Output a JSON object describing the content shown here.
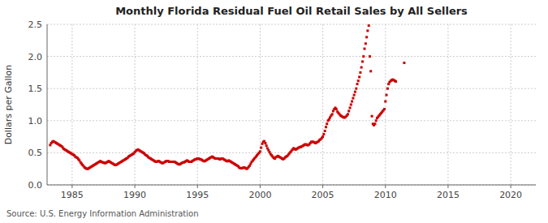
{
  "chart_data": {
    "type": "scatter",
    "title": "Monthly Florida Residual Fuel Oil Retail Sales by All Sellers",
    "y_label": "Dollars per Gallon",
    "annotations": [
      "Source: U.S. Energy Information Administration"
    ],
    "color": "#CC0000",
    "marker": "square",
    "grid": true,
    "xlim": [
      1983.0,
      2022.0
    ],
    "ylim": [
      0.0,
      2.5
    ],
    "xticks": [
      1985,
      1990,
      1995,
      2000,
      2005,
      2010,
      2015,
      2020
    ],
    "yticks": [
      {
        "value": 0.0,
        "label": "0.0"
      },
      0.5,
      {
        "value": 1.0,
        "label": "1.0"
      },
      1.5,
      {
        "value": 2.0,
        "label": "2.0"
      },
      2.5
    ],
    "x": [
      1983.25,
      1983.33,
      1983.42,
      1983.5,
      1983.58,
      1983.67,
      1983.75,
      1983.83,
      1983.92,
      1984.0,
      1984.08,
      1984.17,
      1984.25,
      1984.33,
      1984.42,
      1984.5,
      1984.58,
      1984.67,
      1984.75,
      1984.83,
      1984.92,
      1985.0,
      1985.08,
      1985.17,
      1985.25,
      1985.33,
      1985.42,
      1985.5,
      1985.58,
      1985.67,
      1985.75,
      1985.83,
      1985.92,
      1986.0,
      1986.08,
      1986.17,
      1986.25,
      1986.33,
      1986.42,
      1986.5,
      1986.58,
      1986.67,
      1986.75,
      1986.83,
      1986.92,
      1987.0,
      1987.08,
      1987.17,
      1987.25,
      1987.33,
      1987.42,
      1987.5,
      1987.58,
      1987.67,
      1987.75,
      1987.83,
      1987.92,
      1988.0,
      1988.08,
      1988.17,
      1988.25,
      1988.33,
      1988.42,
      1988.5,
      1988.58,
      1988.67,
      1988.75,
      1988.83,
      1988.92,
      1989.0,
      1989.08,
      1989.17,
      1989.25,
      1989.33,
      1989.42,
      1989.5,
      1989.58,
      1989.67,
      1989.75,
      1989.83,
      1989.92,
      1990.0,
      1990.08,
      1990.17,
      1990.25,
      1990.33,
      1990.42,
      1990.5,
      1990.58,
      1990.67,
      1990.75,
      1990.83,
      1990.92,
      1991.0,
      1991.08,
      1991.17,
      1991.25,
      1991.33,
      1991.42,
      1991.5,
      1991.58,
      1991.67,
      1991.75,
      1991.83,
      1991.92,
      1992.0,
      1992.08,
      1992.17,
      1992.25,
      1992.33,
      1992.42,
      1992.5,
      1992.58,
      1992.67,
      1992.75,
      1992.83,
      1992.92,
      1993.0,
      1993.08,
      1993.17,
      1993.25,
      1993.33,
      1993.42,
      1993.5,
      1993.58,
      1993.67,
      1993.75,
      1993.83,
      1993.92,
      1994.0,
      1994.08,
      1994.17,
      1994.25,
      1994.33,
      1994.42,
      1994.5,
      1994.58,
      1994.67,
      1994.75,
      1994.83,
      1994.92,
      1995.0,
      1995.08,
      1995.17,
      1995.25,
      1995.33,
      1995.42,
      1995.5,
      1995.58,
      1995.67,
      1995.75,
      1995.83,
      1995.92,
      1996.0,
      1996.08,
      1996.17,
      1996.25,
      1996.33,
      1996.42,
      1996.5,
      1996.58,
      1996.67,
      1996.75,
      1996.83,
      1996.92,
      1997.0,
      1997.08,
      1997.17,
      1997.25,
      1997.33,
      1997.42,
      1997.5,
      1997.58,
      1997.67,
      1997.75,
      1997.83,
      1997.92,
      1998.0,
      1998.08,
      1998.17,
      1998.25,
      1998.33,
      1998.42,
      1998.5,
      1998.58,
      1998.67,
      1998.75,
      1998.83,
      1998.92,
      1999.0,
      1999.08,
      1999.17,
      1999.25,
      1999.33,
      1999.42,
      1999.5,
      1999.58,
      1999.67,
      1999.75,
      1999.83,
      1999.92,
      2000.0,
      2000.08,
      2000.17,
      2000.25,
      2000.33,
      2000.42,
      2000.5,
      2000.58,
      2000.67,
      2000.75,
      2000.83,
      2000.92,
      2001.0,
      2001.08,
      2001.17,
      2001.25,
      2001.33,
      2001.42,
      2001.5,
      2001.58,
      2001.67,
      2001.75,
      2001.83,
      2001.92,
      2002.0,
      2002.08,
      2002.17,
      2002.25,
      2002.33,
      2002.42,
      2002.5,
      2002.58,
      2002.67,
      2002.75,
      2002.83,
      2002.92,
      2003.0,
      2003.08,
      2003.17,
      2003.25,
      2003.33,
      2003.42,
      2003.5,
      2003.58,
      2003.67,
      2003.75,
      2003.83,
      2003.92,
      2004.0,
      2004.08,
      2004.17,
      2004.25,
      2004.33,
      2004.42,
      2004.5,
      2004.58,
      2004.67,
      2004.75,
      2004.83,
      2004.92,
      2005.0,
      2005.08,
      2005.17,
      2005.25,
      2005.33,
      2005.42,
      2005.5,
      2005.58,
      2005.67,
      2005.75,
      2005.83,
      2005.92,
      2006.0,
      2006.08,
      2006.17,
      2006.25,
      2006.33,
      2006.42,
      2006.5,
      2006.58,
      2006.67,
      2006.75,
      2006.83,
      2006.92,
      2007.0,
      2007.08,
      2007.17,
      2007.25,
      2007.33,
      2007.42,
      2007.5,
      2007.58,
      2007.67,
      2007.75,
      2007.83,
      2007.92,
      2008.0,
      2008.08,
      2008.17,
      2008.25,
      2008.33,
      2008.42,
      2008.5,
      2008.58,
      2008.67,
      2008.75,
      2008.83,
      2008.92,
      2009.0,
      2009.08,
      2009.17,
      2009.25,
      2009.33,
      2009.42,
      2009.5,
      2009.58,
      2009.67,
      2009.75,
      2009.83,
      2009.92,
      2010.0,
      2010.08,
      2010.17,
      2010.25,
      2010.33,
      2010.42,
      2010.5,
      2010.58,
      2010.67,
      2010.75,
      2010.83,
      2011.5
    ],
    "values": [
      0.62,
      0.65,
      0.67,
      0.68,
      0.67,
      0.66,
      0.65,
      0.64,
      0.63,
      0.62,
      0.61,
      0.6,
      0.58,
      0.56,
      0.55,
      0.54,
      0.53,
      0.52,
      0.51,
      0.5,
      0.49,
      0.48,
      0.47,
      0.46,
      0.44,
      0.43,
      0.42,
      0.4,
      0.38,
      0.35,
      0.33,
      0.31,
      0.29,
      0.27,
      0.26,
      0.25,
      0.25,
      0.26,
      0.27,
      0.28,
      0.29,
      0.3,
      0.31,
      0.32,
      0.33,
      0.34,
      0.35,
      0.36,
      0.37,
      0.36,
      0.35,
      0.35,
      0.34,
      0.34,
      0.35,
      0.36,
      0.37,
      0.36,
      0.35,
      0.34,
      0.33,
      0.32,
      0.31,
      0.31,
      0.32,
      0.33,
      0.34,
      0.35,
      0.36,
      0.37,
      0.38,
      0.39,
      0.4,
      0.41,
      0.42,
      0.44,
      0.45,
      0.46,
      0.47,
      0.48,
      0.49,
      0.51,
      0.53,
      0.54,
      0.55,
      0.54,
      0.53,
      0.52,
      0.51,
      0.5,
      0.49,
      0.47,
      0.46,
      0.45,
      0.43,
      0.42,
      0.41,
      0.4,
      0.39,
      0.38,
      0.37,
      0.36,
      0.36,
      0.37,
      0.37,
      0.36,
      0.35,
      0.34,
      0.34,
      0.35,
      0.36,
      0.37,
      0.37,
      0.37,
      0.36,
      0.36,
      0.36,
      0.36,
      0.36,
      0.36,
      0.35,
      0.34,
      0.33,
      0.32,
      0.32,
      0.33,
      0.34,
      0.35,
      0.35,
      0.36,
      0.37,
      0.38,
      0.37,
      0.36,
      0.36,
      0.36,
      0.37,
      0.38,
      0.39,
      0.4,
      0.4,
      0.41,
      0.41,
      0.4,
      0.4,
      0.39,
      0.38,
      0.37,
      0.37,
      0.38,
      0.39,
      0.4,
      0.41,
      0.42,
      0.43,
      0.44,
      0.43,
      0.42,
      0.41,
      0.41,
      0.41,
      0.41,
      0.4,
      0.4,
      0.41,
      0.41,
      0.4,
      0.39,
      0.38,
      0.37,
      0.37,
      0.38,
      0.37,
      0.36,
      0.35,
      0.34,
      0.33,
      0.32,
      0.31,
      0.3,
      0.29,
      0.27,
      0.26,
      0.26,
      0.26,
      0.27,
      0.27,
      0.26,
      0.25,
      0.26,
      0.28,
      0.3,
      0.33,
      0.36,
      0.38,
      0.4,
      0.42,
      0.44,
      0.46,
      0.48,
      0.5,
      0.52,
      0.58,
      0.64,
      0.67,
      0.68,
      0.65,
      0.61,
      0.57,
      0.54,
      0.51,
      0.48,
      0.46,
      0.44,
      0.42,
      0.41,
      0.43,
      0.44,
      0.45,
      0.44,
      0.43,
      0.42,
      0.41,
      0.4,
      0.41,
      0.43,
      0.44,
      0.45,
      0.47,
      0.49,
      0.51,
      0.53,
      0.55,
      0.57,
      0.56,
      0.55,
      0.56,
      0.57,
      0.58,
      0.59,
      0.59,
      0.6,
      0.61,
      0.62,
      0.63,
      0.63,
      0.62,
      0.62,
      0.63,
      0.65,
      0.67,
      0.67,
      0.67,
      0.66,
      0.65,
      0.66,
      0.67,
      0.68,
      0.7,
      0.71,
      0.73,
      0.75,
      0.79,
      0.84,
      0.9,
      0.95,
      1.0,
      1.02,
      1.05,
      1.08,
      1.1,
      1.15,
      1.18,
      1.2,
      1.18,
      1.14,
      1.12,
      1.1,
      1.08,
      1.07,
      1.06,
      1.05,
      1.05,
      1.06,
      1.08,
      1.1,
      1.15,
      1.2,
      1.25,
      1.3,
      1.35,
      1.4,
      1.45,
      1.5,
      1.57,
      1.62,
      1.68,
      1.75,
      1.83,
      1.92,
      2.0,
      2.12,
      2.2,
      2.3,
      2.4,
      2.48,
      2.0,
      1.77,
      1.07,
      0.95,
      0.93,
      0.95,
      1.0,
      1.04,
      1.06,
      1.08,
      1.1,
      1.12,
      1.14,
      1.16,
      1.18,
      1.3,
      1.4,
      1.5,
      1.57,
      1.6,
      1.62,
      1.63,
      1.64,
      1.63,
      1.62,
      1.61,
      1.9
    ]
  }
}
